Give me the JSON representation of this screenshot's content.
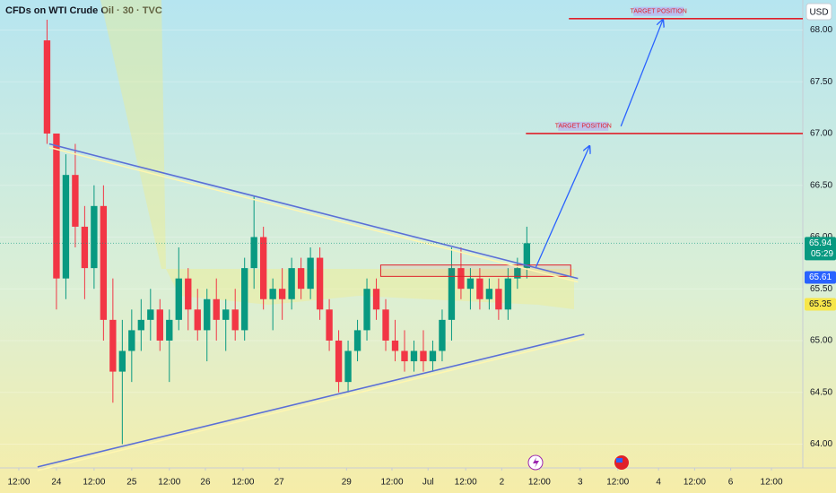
{
  "chart_data": {
    "type": "candlestick",
    "title": "CFDs on WTI Crude Oil · 30 · TVC",
    "currency": "USD",
    "up_color": "#089981",
    "down_color": "#f23645",
    "x": [
      -3,
      0,
      3,
      6,
      9,
      12,
      15,
      18,
      21,
      24,
      27,
      30,
      33,
      36,
      39,
      42,
      45,
      48,
      51,
      54,
      57,
      60,
      63,
      66,
      69,
      72,
      75,
      78,
      81,
      84,
      87,
      90,
      93,
      96,
      99,
      102,
      105,
      108,
      111,
      114,
      117,
      120,
      123,
      126,
      129,
      132,
      135,
      138,
      141,
      144,
      147,
      150
    ],
    "open": [
      67.9,
      67.0,
      65.6,
      66.6,
      66.1,
      65.7,
      66.3,
      65.2,
      64.7,
      64.9,
      65.1,
      65.2,
      65.3,
      65.0,
      65.2,
      65.6,
      65.3,
      65.1,
      65.4,
      65.2,
      65.3,
      65.1,
      65.7,
      66.0,
      65.4,
      65.5,
      65.4,
      65.7,
      65.5,
      65.8,
      65.3,
      65.0,
      64.6,
      64.9,
      65.1,
      65.5,
      65.3,
      65.0,
      64.9,
      64.8,
      64.9,
      64.8,
      64.9,
      65.2,
      65.7,
      65.5,
      65.6,
      65.4,
      65.5,
      65.3,
      65.6,
      65.7
    ],
    "high": [
      68.1,
      67.0,
      66.8,
      66.9,
      66.3,
      66.5,
      66.5,
      65.6,
      65.2,
      65.3,
      65.4,
      65.5,
      65.4,
      65.3,
      65.9,
      65.7,
      65.5,
      65.5,
      65.6,
      65.4,
      65.5,
      65.8,
      66.4,
      66.1,
      65.6,
      65.7,
      65.8,
      65.8,
      65.9,
      65.9,
      65.4,
      65.1,
      65.0,
      65.2,
      65.6,
      65.6,
      65.4,
      65.2,
      65.1,
      65.0,
      65.1,
      65.0,
      65.3,
      65.9,
      65.9,
      65.7,
      65.7,
      65.6,
      65.6,
      65.7,
      65.8,
      66.1
    ],
    "low": [
      66.9,
      65.3,
      65.4,
      65.9,
      65.4,
      65.5,
      65.0,
      64.4,
      64.0,
      64.6,
      64.9,
      65.0,
      64.9,
      64.6,
      65.1,
      65.1,
      65.0,
      64.8,
      65.0,
      64.9,
      65.0,
      65.0,
      65.5,
      65.3,
      65.1,
      65.2,
      65.3,
      65.4,
      65.4,
      65.2,
      64.9,
      64.5,
      64.5,
      64.8,
      65.0,
      65.2,
      64.9,
      64.8,
      64.7,
      64.7,
      64.7,
      64.7,
      64.8,
      65.0,
      65.4,
      65.3,
      65.3,
      65.3,
      65.2,
      65.2,
      65.5,
      65.6
    ],
    "close": [
      67.0,
      65.6,
      66.6,
      66.1,
      65.7,
      66.3,
      65.2,
      64.7,
      64.9,
      65.1,
      65.2,
      65.3,
      65.0,
      65.2,
      65.6,
      65.3,
      65.1,
      65.4,
      65.2,
      65.3,
      65.1,
      65.7,
      66.0,
      65.4,
      65.5,
      65.4,
      65.7,
      65.5,
      65.8,
      65.3,
      65.0,
      64.6,
      64.9,
      65.1,
      65.5,
      65.3,
      65.0,
      64.9,
      64.8,
      64.9,
      64.8,
      64.9,
      65.2,
      65.7,
      65.5,
      65.6,
      65.4,
      65.5,
      65.3,
      65.6,
      65.7,
      65.94
    ],
    "xlim": [
      -18,
      238
    ],
    "ylim": [
      63.77,
      68.29
    ],
    "xticks": [
      {
        "value": -12,
        "label": "12:00"
      },
      {
        "value": 0,
        "label": "24"
      },
      {
        "value": 12,
        "label": "12:00"
      },
      {
        "value": 24,
        "label": "25"
      },
      {
        "value": 36,
        "label": "12:00"
      },
      {
        "value": 47.5,
        "label": "26"
      },
      {
        "value": 59.5,
        "label": "12:00"
      },
      {
        "value": 71,
        "label": "27"
      },
      {
        "value": 92.5,
        "label": "29"
      },
      {
        "value": 107,
        "label": "12:00"
      },
      {
        "value": 118.5,
        "label": "Jul"
      },
      {
        "value": 130.5,
        "label": "12:00"
      },
      {
        "value": 142,
        "label": "2"
      },
      {
        "value": 154,
        "label": "12:00"
      },
      {
        "value": 167,
        "label": "3"
      },
      {
        "value": 179,
        "label": "12:00"
      },
      {
        "value": 192,
        "label": "4"
      },
      {
        "value": 203.5,
        "label": "12:00"
      },
      {
        "value": 215,
        "label": "6"
      },
      {
        "value": 228,
        "label": "12:00"
      }
    ],
    "yticks": [
      {
        "value": 64,
        "label": "64.00"
      },
      {
        "value": 64.5,
        "label": "64.50"
      },
      {
        "value": 65,
        "label": "65.00"
      },
      {
        "value": 65.5,
        "label": "65.50"
      },
      {
        "value": 66,
        "label": "66.00"
      },
      {
        "value": 66.5,
        "label": "66.50"
      },
      {
        "value": 67,
        "label": "67.00"
      },
      {
        "value": 67.5,
        "label": "67.50"
      },
      {
        "value": 68,
        "label": "68.00"
      }
    ],
    "lines": [
      {
        "x": [
          -2.3,
          166.3
        ],
        "y": [
          66.9,
          65.6
        ],
        "color": "#5b6fd6"
      },
      {
        "x": [
          -6,
          168.3
        ],
        "y": [
          63.78,
          65.06
        ],
        "color": "#5b6fd6"
      },
      {
        "x": [
          149.7,
          238
        ],
        "y": [
          67.0,
          67.0
        ],
        "color": "#e0202a"
      },
      {
        "x": [
          163.4,
          238
        ],
        "y": [
          68.11,
          68.11
        ],
        "color": "#e0202a"
      },
      {
        "x": [
          152.9,
          170
        ],
        "y": [
          65.71,
          66.88
        ],
        "color": "#2962ff",
        "arrow": true
      },
      {
        "x": [
          180,
          193.4
        ],
        "y": [
          67.07,
          68.1
        ],
        "color": "#2962ff",
        "arrow": true
      }
    ],
    "box": {
      "x": [
        103.4,
        164
      ],
      "y": [
        65.62,
        65.73
      ],
      "color": "#e0202a"
    },
    "annotations": [
      {
        "text": "TARGET POSITION",
        "x": 168,
        "y": 67.07
      },
      {
        "text": "TARGET POSITION",
        "x": 192,
        "y": 68.18
      }
    ],
    "price_tags": [
      {
        "value": 65.94,
        "color": "#089981",
        "countdown": "05:29"
      },
      {
        "value": 65.61,
        "color": "#2962ff"
      },
      {
        "value": 65.35,
        "color": "#f7e64a"
      }
    ]
  }
}
